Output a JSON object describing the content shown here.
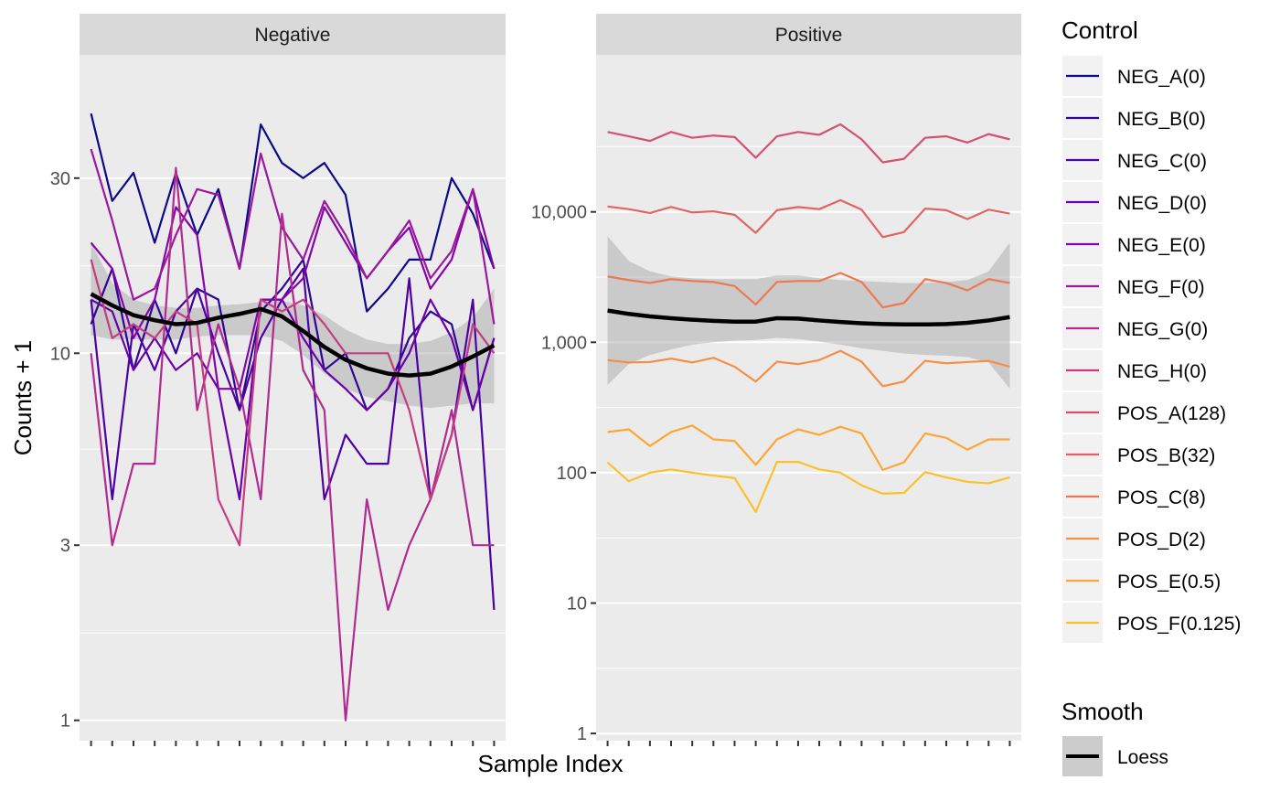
{
  "chart_data": {
    "type": "line",
    "xlabel": "Sample Index",
    "ylabel": "Counts + 1",
    "y_scale": "log10",
    "n_samples": 20,
    "grid": true,
    "legend_placement": "right",
    "legend_title": "Control",
    "smooth_legend_title": "Smooth",
    "smooth_label": "Loess",
    "series": [
      {
        "name": "NEG_A(0)",
        "color": "#0d0887"
      },
      {
        "name": "NEG_B(0)",
        "color": "#2f0596"
      },
      {
        "name": "NEG_C(0)",
        "color": "#4c02a1"
      },
      {
        "name": "NEG_D(0)",
        "color": "#6a00a8"
      },
      {
        "name": "NEG_E(0)",
        "color": "#8405a7"
      },
      {
        "name": "NEG_F(0)",
        "color": "#9c179e"
      },
      {
        "name": "NEG_G(0)",
        "color": "#b12a90"
      },
      {
        "name": "NEG_H(0)",
        "color": "#c33d80"
      },
      {
        "name": "POS_A(128)",
        "color": "#d35171"
      },
      {
        "name": "POS_B(32)",
        "color": "#e16462"
      },
      {
        "name": "POS_C(8)",
        "color": "#ed7953"
      },
      {
        "name": "POS_D(2)",
        "color": "#f68f44"
      },
      {
        "name": "POS_E(0.5)",
        "color": "#fca636"
      },
      {
        "name": "POS_F(0.125)",
        "color": "#fdc029"
      }
    ],
    "panels": [
      {
        "title": "Negative",
        "ylim": [
          0.88,
          65
        ],
        "yticks": [
          1,
          3,
          10,
          30
        ],
        "ytick_labels": [
          "1",
          "3",
          "10",
          "30"
        ],
        "minor_yticks": [
          1.73,
          5.48,
          17.3
        ],
        "lines": [
          {
            "series": "NEG_A(0)",
            "y": [
              45,
              26,
              31,
              20,
              31,
              21,
              28,
              17,
              42,
              33,
              30,
              33,
              27,
              13,
              15,
              18,
              18,
              30,
              24,
              17
            ]
          },
          {
            "series": "NEG_B(0)",
            "y": [
              12,
              17,
              9,
              14,
              10,
              15,
              14,
              7,
              13,
              15,
              18,
              9,
              10,
              7,
              8,
              11,
              13,
              12,
              7,
              11
            ]
          },
          {
            "series": "NEG_C(0)",
            "y": [
              14,
              4,
              12,
              9,
              13,
              15,
              10,
              7,
              11,
              14,
              17,
              4,
              6,
              5,
              5,
              16,
              4,
              6,
              14,
              2
            ]
          },
          {
            "series": "NEG_D(0)",
            "y": [
              14,
              13,
              9,
              11,
              9,
              10,
              8,
              4,
              14,
              14,
              11,
              9,
              8,
              7,
              8,
              10,
              14,
              11,
              7,
              11
            ]
          },
          {
            "series": "NEG_E(0)",
            "y": [
              20,
              17,
              11,
              14,
              25,
              21,
              8,
              8,
              14,
              14,
              16,
              25,
              20,
              16,
              19,
              22,
              15,
              18,
              28,
              17
            ]
          },
          {
            "series": "NEG_F(0)",
            "y": [
              36,
              23,
              14,
              15,
              21,
              28,
              27,
              17,
              35,
              22,
              18,
              26,
              21,
              16,
              19,
              23,
              16,
              19,
              28,
              12
            ]
          },
          {
            "series": "NEG_G(0)",
            "y": [
              10,
              3,
              5,
              5,
              32,
              7,
              12,
              8,
              4,
              24,
              9,
              7,
              1,
              4,
              2,
              3,
              4,
              7,
              3,
              3
            ]
          },
          {
            "series": "NEG_H(0)",
            "y": [
              18,
              11,
              12,
              11,
              13,
              12,
              4,
              3,
              14,
              13,
              14,
              12,
              10,
              10,
              10,
              7,
              4,
              6,
              12,
              10
            ]
          }
        ],
        "smooth": {
          "y": [
            14.5,
            13.5,
            12.7,
            12.3,
            12,
            12.1,
            12.5,
            12.8,
            13.2,
            12.6,
            11.5,
            10.4,
            9.6,
            9.1,
            8.8,
            8.7,
            8.8,
            9.2,
            9.8,
            10.5
          ],
          "lower": [
            11.2,
            10.9,
            10.9,
            10.9,
            10.9,
            11.1,
            11.2,
            11.2,
            11.2,
            10.8,
            9.9,
            8.8,
            8,
            7.6,
            7.4,
            7.2,
            7.1,
            7.2,
            7.3,
            7.3
          ],
          "upper": [
            20,
            15.5,
            14,
            13.5,
            13.3,
            13.3,
            13.5,
            13.6,
            13.8,
            13.9,
            13.5,
            12.7,
            11.6,
            10.9,
            10.6,
            10.6,
            10.8,
            11.4,
            12.5,
            15
          ]
        }
      },
      {
        "title": "Positive",
        "ylim": [
          0.88,
          160000
        ],
        "yticks": [
          1,
          10,
          100,
          1000,
          10000
        ],
        "ytick_labels": [
          "1",
          "10",
          "100",
          "1,000",
          "10,000"
        ],
        "minor_yticks": [
          3.16,
          31.6,
          316,
          3162,
          31623
        ],
        "lines": [
          {
            "series": "POS_A(128)",
            "y": [
              41000,
              38000,
              35000,
              41000,
              37000,
              38500,
              37500,
              26000,
              38000,
              41000,
              39000,
              47000,
              36000,
              24000,
              25500,
              37000,
              38000,
              34000,
              39500,
              36000
            ]
          },
          {
            "series": "POS_B(32)",
            "y": [
              11000,
              10500,
              9800,
              10900,
              9900,
              10100,
              9500,
              6900,
              10300,
              10900,
              10500,
              12300,
              10400,
              6400,
              7000,
              10600,
              10300,
              8800,
              10400,
              9700
            ]
          },
          {
            "series": "POS_C(8)",
            "y": [
              3200,
              3000,
              2850,
              3050,
              2950,
              2900,
              2700,
              1950,
              2900,
              2950,
              2950,
              3400,
              2900,
              1850,
              2000,
              3050,
              2850,
              2500,
              3050,
              2850
            ]
          },
          {
            "series": "POS_D(2)",
            "y": [
              730,
              700,
              705,
              750,
              700,
              760,
              650,
              500,
              710,
              680,
              730,
              860,
              710,
              460,
              500,
              720,
              690,
              705,
              720,
              650
            ]
          },
          {
            "series": "POS_E(0.5)",
            "y": [
              205,
              215,
              160,
              205,
              230,
              180,
              175,
              115,
              180,
              215,
              195,
              225,
              200,
              105,
              120,
              200,
              185,
              150,
              180,
              180
            ]
          },
          {
            "series": "POS_F(0.125)",
            "y": [
              120,
              86,
              100,
              106,
              100,
              95,
              91,
              50,
              121,
              121,
              106,
              100,
              80,
              69,
              70,
              101,
              92,
              85,
              83,
              92
            ]
          }
        ],
        "smooth": {
          "y": [
            1750,
            1650,
            1580,
            1530,
            1490,
            1460,
            1440,
            1440,
            1530,
            1520,
            1470,
            1430,
            1400,
            1380,
            1370,
            1370,
            1380,
            1410,
            1470,
            1560
          ],
          "lower": [
            470,
            680,
            800,
            880,
            960,
            1000,
            1030,
            1040,
            1080,
            1060,
            1010,
            960,
            900,
            860,
            820,
            800,
            790,
            770,
            700,
            440
          ],
          "upper": [
            6500,
            4200,
            3500,
            3200,
            3100,
            3050,
            3050,
            3050,
            3250,
            3250,
            3100,
            3000,
            2950,
            2900,
            2850,
            2850,
            2900,
            3000,
            3500,
            5800
          ]
        }
      }
    ]
  }
}
